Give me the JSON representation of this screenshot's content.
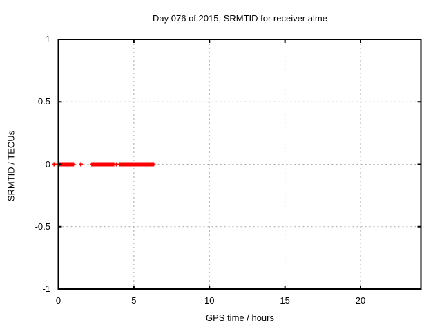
{
  "chart_data": {
    "type": "scatter",
    "title": "Day 076 of 2015, SRMTID for receiver alme",
    "xlabel": "GPS time / hours",
    "ylabel": "SRMTID / TECUs",
    "xlim": [
      0,
      24
    ],
    "ylim": [
      -1,
      1
    ],
    "xticks": [
      0,
      5,
      10,
      15,
      20
    ],
    "yticks": [
      -1,
      -0.5,
      0,
      0.5,
      1
    ],
    "grid": true,
    "legend": "none",
    "marker": "plus",
    "marker_color": "#ff0000",
    "series": [
      {
        "name": "SRMTID",
        "y": 0,
        "x_ranges": [
          [
            -0.28,
            -0.28
          ],
          [
            0.0,
            1.03
          ],
          [
            1.49,
            1.49
          ],
          [
            2.22,
            3.68
          ],
          [
            3.85,
            3.85
          ],
          [
            4.05,
            6.32
          ]
        ]
      }
    ]
  },
  "colors": {
    "background": "#ffffff",
    "axis": "#000000",
    "grid": "#a6a6a6",
    "marker": "#ff0000",
    "text": "#000000"
  }
}
